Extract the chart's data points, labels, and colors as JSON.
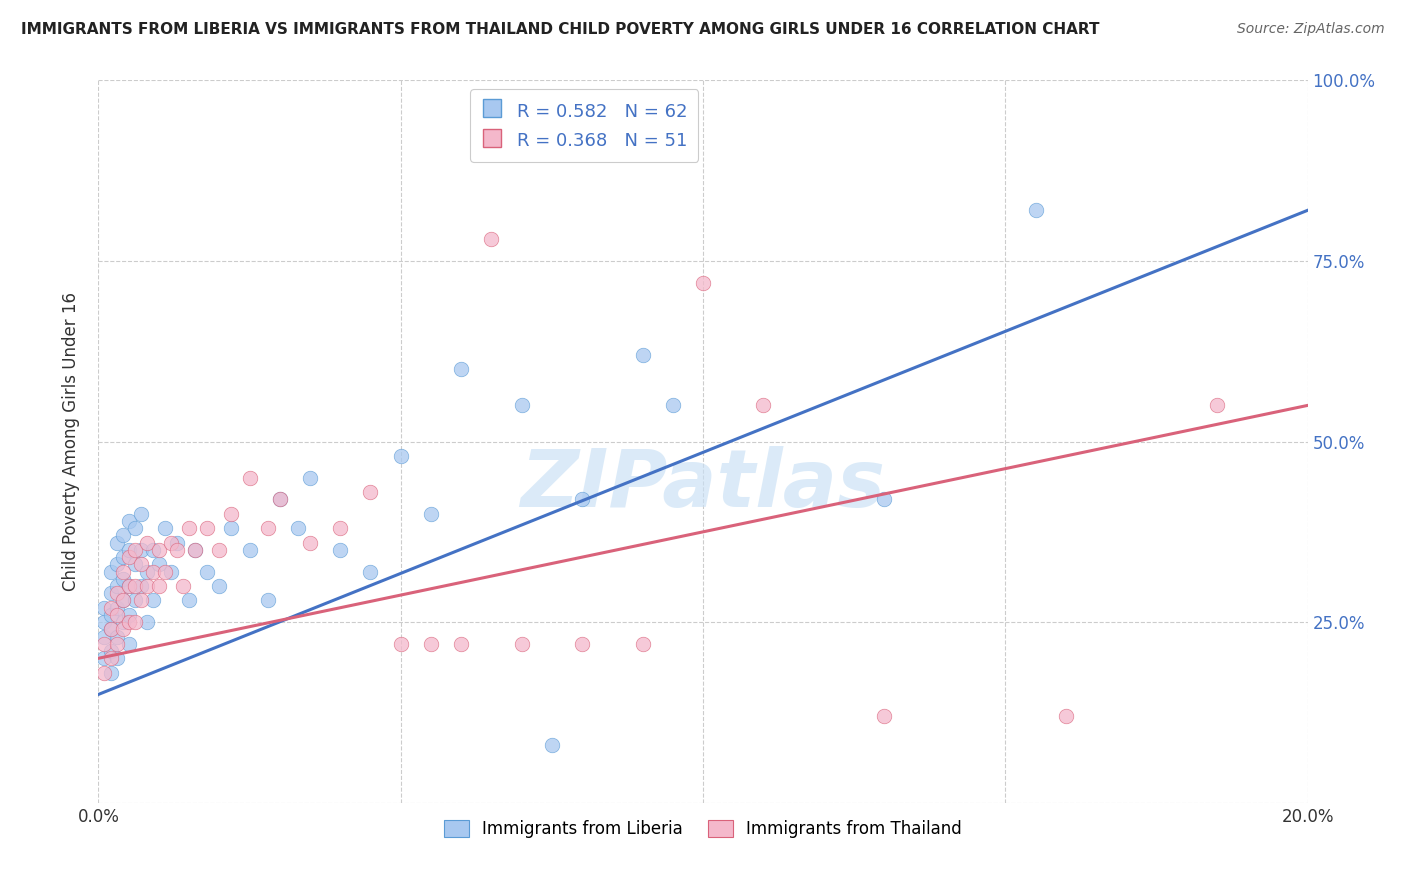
{
  "title": "IMMIGRANTS FROM LIBERIA VS IMMIGRANTS FROM THAILAND CHILD POVERTY AMONG GIRLS UNDER 16 CORRELATION CHART",
  "source": "Source: ZipAtlas.com",
  "ylabel": "Child Poverty Among Girls Under 16",
  "xlim": [
    0.0,
    0.2
  ],
  "ylim": [
    0.0,
    1.0
  ],
  "liberia_color": "#a8c8f0",
  "liberia_edge_color": "#5b9bd5",
  "thailand_color": "#f4b8cb",
  "thailand_edge_color": "#d9627a",
  "liberia_line_color": "#4472c4",
  "thailand_line_color": "#d9627a",
  "right_tick_color": "#4472c4",
  "watermark": "ZIPatlas",
  "liberia_line": {
    "x0": 0.0,
    "x1": 0.2,
    "y0": 0.15,
    "y1": 0.82
  },
  "thailand_line": {
    "x0": 0.0,
    "x1": 0.2,
    "y0": 0.2,
    "y1": 0.55
  },
  "liberia_x": [
    0.001,
    0.001,
    0.001,
    0.001,
    0.002,
    0.002,
    0.002,
    0.002,
    0.002,
    0.002,
    0.003,
    0.003,
    0.003,
    0.003,
    0.003,
    0.003,
    0.004,
    0.004,
    0.004,
    0.004,
    0.004,
    0.005,
    0.005,
    0.005,
    0.005,
    0.005,
    0.006,
    0.006,
    0.006,
    0.007,
    0.007,
    0.007,
    0.008,
    0.008,
    0.009,
    0.009,
    0.01,
    0.011,
    0.012,
    0.013,
    0.015,
    0.016,
    0.018,
    0.02,
    0.022,
    0.025,
    0.028,
    0.03,
    0.033,
    0.035,
    0.04,
    0.045,
    0.05,
    0.055,
    0.06,
    0.07,
    0.075,
    0.08,
    0.09,
    0.095,
    0.13,
    0.155
  ],
  "liberia_y": [
    0.2,
    0.23,
    0.25,
    0.27,
    0.18,
    0.21,
    0.24,
    0.26,
    0.29,
    0.32,
    0.2,
    0.23,
    0.27,
    0.3,
    0.33,
    0.36,
    0.25,
    0.28,
    0.31,
    0.34,
    0.37,
    0.22,
    0.26,
    0.3,
    0.35,
    0.39,
    0.28,
    0.33,
    0.38,
    0.3,
    0.35,
    0.4,
    0.25,
    0.32,
    0.28,
    0.35,
    0.33,
    0.38,
    0.32,
    0.36,
    0.28,
    0.35,
    0.32,
    0.3,
    0.38,
    0.35,
    0.28,
    0.42,
    0.38,
    0.45,
    0.35,
    0.32,
    0.48,
    0.4,
    0.6,
    0.55,
    0.08,
    0.42,
    0.62,
    0.55,
    0.42,
    0.82
  ],
  "thailand_x": [
    0.001,
    0.001,
    0.002,
    0.002,
    0.002,
    0.003,
    0.003,
    0.003,
    0.004,
    0.004,
    0.004,
    0.005,
    0.005,
    0.005,
    0.006,
    0.006,
    0.006,
    0.007,
    0.007,
    0.008,
    0.008,
    0.009,
    0.01,
    0.01,
    0.011,
    0.012,
    0.013,
    0.014,
    0.015,
    0.016,
    0.018,
    0.02,
    0.022,
    0.025,
    0.028,
    0.03,
    0.035,
    0.04,
    0.045,
    0.05,
    0.055,
    0.06,
    0.065,
    0.07,
    0.08,
    0.09,
    0.1,
    0.11,
    0.13,
    0.16,
    0.185
  ],
  "thailand_y": [
    0.18,
    0.22,
    0.2,
    0.24,
    0.27,
    0.22,
    0.26,
    0.29,
    0.24,
    0.28,
    0.32,
    0.25,
    0.3,
    0.34,
    0.25,
    0.3,
    0.35,
    0.28,
    0.33,
    0.3,
    0.36,
    0.32,
    0.3,
    0.35,
    0.32,
    0.36,
    0.35,
    0.3,
    0.38,
    0.35,
    0.38,
    0.35,
    0.4,
    0.45,
    0.38,
    0.42,
    0.36,
    0.38,
    0.43,
    0.22,
    0.22,
    0.22,
    0.78,
    0.22,
    0.22,
    0.22,
    0.72,
    0.55,
    0.12,
    0.12,
    0.55
  ]
}
